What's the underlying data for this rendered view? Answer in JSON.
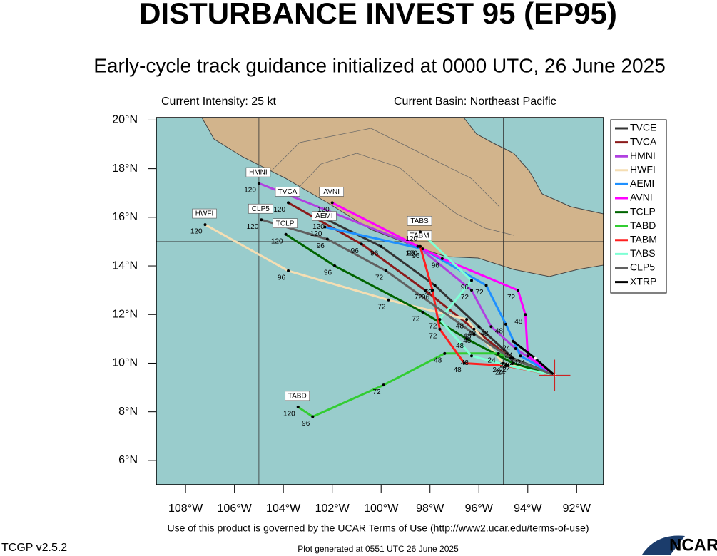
{
  "chart_data": {
    "type": "line",
    "title": "DISTURBANCE INVEST 95 (EP95)",
    "subtitle": "Early-cycle track guidance initialized at 0000 UTC, 26 June 2025",
    "intensity": "Current Intensity: 25 kt",
    "basin": "Current Basin: Northeast Pacific",
    "xlim": [
      -109.2,
      -90.9
    ],
    "ylim": [
      5.0,
      20.1
    ],
    "xticks": [
      {
        "value": -108,
        "label": "108°W"
      },
      {
        "value": -106,
        "label": "106°W"
      },
      {
        "value": -104,
        "label": "104°W"
      },
      {
        "value": -102,
        "label": "102°W"
      },
      {
        "value": -100,
        "label": "100°W"
      },
      {
        "value": -98,
        "label": "98°W"
      },
      {
        "value": -96,
        "label": "96°W"
      },
      {
        "value": -94,
        "label": "94°W"
      },
      {
        "value": -92,
        "label": "92°W"
      }
    ],
    "yticks": [
      {
        "value": 6,
        "label": "6°N"
      },
      {
        "value": 8,
        "label": "8°N"
      },
      {
        "value": 10,
        "label": "10°N"
      },
      {
        "value": 12,
        "label": "12°N"
      },
      {
        "value": 14,
        "label": "14°N"
      },
      {
        "value": 16,
        "label": "16°N"
      },
      {
        "value": 18,
        "label": "18°N"
      },
      {
        "value": 20,
        "label": "20°N"
      }
    ],
    "grid_x": [
      -105,
      -95
    ],
    "grid_y": [
      15
    ],
    "current_position": {
      "x": -92.9,
      "y": 9.5
    },
    "series": [
      {
        "name": "TVCE",
        "color": "#333333",
        "end_tag": false,
        "x": [
          -92.9,
          -94.6,
          -96.0,
          -97.8,
          -100.0,
          -102.2
        ],
        "values": [
          9.5,
          10.2,
          11.5,
          13.2,
          14.8,
          15.9
        ],
        "hours": [
          null,
          24,
          48,
          72,
          96,
          120
        ]
      },
      {
        "name": "TVCA",
        "color": "#8b1a1a",
        "end_tag": true,
        "x": [
          -92.9,
          -94.7,
          -96.2,
          -98.2,
          -100.8,
          -103.8
        ],
        "values": [
          9.5,
          10.2,
          11.4,
          13.0,
          14.9,
          16.6
        ],
        "hours": [
          null,
          24,
          48,
          72,
          96,
          120
        ]
      },
      {
        "name": "HMNI",
        "color": "#b040e0",
        "end_tag": true,
        "x": [
          -92.9,
          -94.5,
          -95.5,
          -96.3,
          -98.5,
          -105.0
        ],
        "values": [
          9.5,
          10.6,
          11.5,
          13.0,
          14.8,
          17.4
        ],
        "hours": [
          null,
          24,
          48,
          72,
          96,
          120
        ]
      },
      {
        "name": "HWFI",
        "color": "#f5deb3",
        "end_tag": true,
        "x": [
          -92.9,
          -95.0,
          -96.5,
          -99.7,
          -103.8,
          -107.2
        ],
        "values": [
          9.5,
          10.0,
          11.8,
          12.6,
          13.8,
          15.7
        ],
        "hours": [
          null,
          24,
          48,
          72,
          96,
          120
        ]
      },
      {
        "name": "AEMI",
        "color": "#1e90ff",
        "end_tag": true,
        "x": [
          -92.9,
          -94.3,
          -94.9,
          -95.7,
          -98.3,
          -102.3
        ],
        "values": [
          9.5,
          10.3,
          11.6,
          13.2,
          14.7,
          15.6
        ],
        "hours": [
          null,
          24,
          48,
          72,
          96,
          120
        ]
      },
      {
        "name": "AVNI",
        "color": "#ff00ff",
        "end_tag": true,
        "x": [
          -92.9,
          -94.0,
          -94.1,
          -94.4,
          -97.5,
          -102.0
        ],
        "values": [
          9.5,
          10.3,
          12.0,
          13.0,
          14.3,
          16.6
        ],
        "hours": [
          null,
          24,
          48,
          72,
          96,
          120
        ]
      },
      {
        "name": "TCLP",
        "color": "#006400",
        "end_tag": true,
        "x": [
          -92.9,
          -94.6,
          -96.5,
          -98.3,
          -101.9,
          -103.9
        ],
        "values": [
          9.5,
          10.0,
          11.0,
          12.1,
          14.0,
          15.3
        ],
        "hours": [
          null,
          24,
          48,
          72,
          96,
          120
        ]
      },
      {
        "name": "TABD",
        "color": "#32cd32",
        "end_tag": true,
        "x": [
          -92.9,
          -95.2,
          -97.4,
          -99.9,
          -102.8,
          -103.4
        ],
        "values": [
          9.5,
          10.4,
          10.4,
          9.1,
          7.8,
          8.2
        ],
        "hours": [
          null,
          24,
          48,
          72,
          96,
          120
        ]
      },
      {
        "name": "TABM",
        "color": "#ff2020",
        "end_tag": true,
        "x": [
          -92.9,
          -94.9,
          -96.6,
          -97.6,
          -97.9,
          -98.4
        ],
        "values": [
          9.5,
          9.9,
          10.0,
          11.4,
          13.0,
          14.8
        ],
        "hours": [
          null,
          24,
          48,
          72,
          96,
          120
        ]
      },
      {
        "name": "TABS",
        "color": "#7fffd4",
        "end_tag": true,
        "x": [
          -92.9,
          -94.8,
          -96.3,
          -97.6,
          -96.3,
          -98.4
        ],
        "values": [
          9.5,
          9.9,
          10.3,
          11.8,
          13.4,
          15.4
        ],
        "hours": [
          null,
          24,
          48,
          72,
          96,
          120
        ]
      },
      {
        "name": "CLP5",
        "color": "#606060",
        "end_tag": true,
        "x": [
          -92.9,
          -94.7,
          -96.2,
          -99.8,
          -102.2,
          -104.9
        ],
        "values": [
          9.5,
          10.2,
          11.2,
          13.8,
          15.1,
          15.9
        ],
        "hours": [
          null,
          24,
          48,
          72,
          96,
          120
        ]
      },
      {
        "name": "XTRP",
        "color": "#000000",
        "end_tag": false,
        "x": [
          -92.9,
          -93.7,
          -94.6
        ],
        "values": [
          9.5,
          10.2,
          10.9
        ],
        "hours": [
          null,
          null,
          24
        ]
      }
    ],
    "terms": "Use of this product is governed by the UCAR Terms of Use (http://www2.ucar.edu/terms-of-use)",
    "version": "TCGP v2.5.2",
    "generated": "Plot generated at 0551 UTC   26 June 2025",
    "logo": "NCAR"
  }
}
